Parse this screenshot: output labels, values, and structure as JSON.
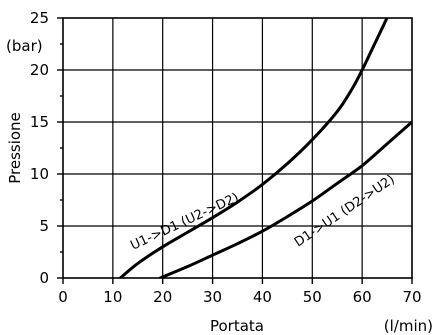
{
  "chart_data": {
    "type": "line",
    "xlabel": "Portata",
    "xunit": "(l/min)",
    "ylabel": "Pressione",
    "yunit": "(bar)",
    "xlim": [
      0,
      70
    ],
    "ylim": [
      0,
      25
    ],
    "xticks": [
      0,
      10,
      20,
      30,
      40,
      50,
      60,
      70
    ],
    "yticks": [
      0,
      5,
      10,
      15,
      20,
      25
    ],
    "grid": true,
    "series": [
      {
        "name": "U1->D1 (U2->D2)",
        "x": [
          11.5,
          15,
          20,
          25,
          30,
          35,
          40,
          45,
          50,
          55,
          58,
          60,
          62,
          63,
          64,
          65,
          65.8
        ],
        "y": [
          0,
          1.4,
          3.0,
          4.4,
          5.8,
          7.3,
          9.0,
          11.0,
          13.3,
          16.0,
          18.2,
          20.0,
          22.0,
          23.0,
          24.0,
          25.0,
          25.5
        ]
      },
      {
        "name": "D1->U1 (D2->U2)",
        "x": [
          19.5,
          25,
          30,
          35,
          40,
          45,
          50,
          55,
          60,
          65,
          70
        ],
        "y": [
          0,
          1.1,
          2.2,
          3.3,
          4.5,
          5.9,
          7.4,
          9.1,
          10.8,
          12.9,
          15.0
        ]
      }
    ]
  }
}
